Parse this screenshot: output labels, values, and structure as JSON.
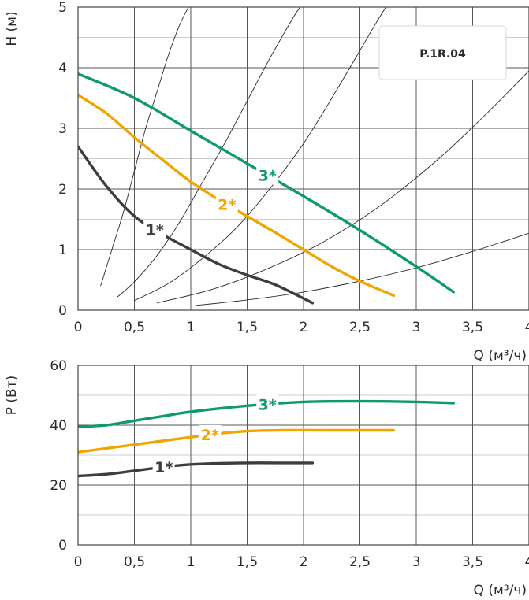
{
  "chart_data": [
    {
      "type": "line",
      "ylabel": "H (м)",
      "xlabel": "Q (м³/ч)",
      "xlim": [
        0,
        4
      ],
      "ylim": [
        0,
        5
      ],
      "x_ticks": [
        "0",
        "0,5",
        "1",
        "1,5",
        "2",
        "2,5",
        "3",
        "3,5",
        "4"
      ],
      "y_ticks": [
        "0",
        "1",
        "2",
        "3",
        "4",
        "5"
      ],
      "grid": true,
      "badge": "P.1R.04",
      "series": [
        {
          "name": "1*",
          "color": "#3d3d3d",
          "x": [
            0,
            0.25,
            0.5,
            0.75,
            1.0,
            1.25,
            1.5,
            1.75,
            2.08
          ],
          "y": [
            2.7,
            2.05,
            1.55,
            1.25,
            1.0,
            0.76,
            0.58,
            0.42,
            0.12
          ]
        },
        {
          "name": "2*",
          "color": "#f0a500",
          "x": [
            0,
            0.25,
            0.5,
            0.75,
            1.0,
            1.25,
            1.5,
            1.75,
            2.0,
            2.25,
            2.5,
            2.8
          ],
          "y": [
            3.55,
            3.25,
            2.85,
            2.48,
            2.12,
            1.82,
            1.55,
            1.28,
            1.0,
            0.72,
            0.48,
            0.24
          ]
        },
        {
          "name": "3*",
          "color": "#0f9a6e",
          "x": [
            0,
            0.5,
            1.0,
            1.5,
            2.0,
            2.5,
            3.0,
            3.33
          ],
          "y": [
            3.9,
            3.5,
            2.96,
            2.42,
            1.88,
            1.32,
            0.72,
            0.3
          ]
        }
      ],
      "system_curves": [
        {
          "x": [
            0.2,
            0.3,
            0.4,
            0.5,
            0.6,
            0.7,
            0.8,
            0.9,
            0.98
          ],
          "y": [
            0.4,
            1.0,
            1.6,
            2.3,
            3.0,
            3.6,
            4.2,
            4.7,
            5.0
          ]
        },
        {
          "x": [
            0.35,
            0.5,
            0.7,
            0.9,
            1.1,
            1.3,
            1.5,
            1.7,
            1.9,
            1.97
          ],
          "y": [
            0.22,
            0.47,
            0.9,
            1.45,
            2.1,
            2.75,
            3.45,
            4.15,
            4.8,
            5.0
          ]
        },
        {
          "x": [
            0.5,
            0.8,
            1.1,
            1.4,
            1.7,
            2.0,
            2.3,
            2.6,
            2.73
          ],
          "y": [
            0.16,
            0.44,
            0.85,
            1.35,
            2.0,
            2.75,
            3.65,
            4.6,
            5.0
          ]
        },
        {
          "x": [
            0.7,
            1.2,
            1.7,
            2.2,
            2.7,
            3.2,
            3.6,
            4.0
          ],
          "y": [
            0.12,
            0.35,
            0.7,
            1.15,
            1.75,
            2.5,
            3.2,
            3.95
          ]
        },
        {
          "x": [
            1.05,
            1.5,
            2.0,
            2.5,
            3.0,
            3.5,
            4.0
          ],
          "y": [
            0.08,
            0.17,
            0.3,
            0.48,
            0.7,
            0.97,
            1.27
          ]
        }
      ]
    },
    {
      "type": "line",
      "ylabel": "P (Вт)",
      "xlabel": "Q (м³/ч)",
      "xlim": [
        0,
        4
      ],
      "ylim": [
        0,
        60
      ],
      "x_ticks": [
        "0",
        "0,5",
        "1",
        "1,5",
        "2",
        "2,5",
        "3",
        "3,5",
        "4"
      ],
      "y_ticks": [
        "0",
        "20",
        "40",
        "60"
      ],
      "grid": true,
      "series": [
        {
          "name": "1*",
          "color": "#3d3d3d",
          "x": [
            0,
            0.3,
            0.6,
            0.9,
            1.2,
            1.5,
            1.8,
            2.08
          ],
          "y": [
            23.0,
            23.8,
            25.3,
            26.6,
            27.2,
            27.4,
            27.4,
            27.4
          ]
        },
        {
          "name": "2*",
          "color": "#f0a500",
          "x": [
            0,
            0.3,
            0.6,
            0.9,
            1.2,
            1.5,
            1.8,
            2.2,
            2.8
          ],
          "y": [
            31.0,
            32.5,
            34.0,
            35.5,
            37.0,
            38.0,
            38.3,
            38.3,
            38.3
          ]
        },
        {
          "name": "3*",
          "color": "#0f9a6e",
          "x": [
            0,
            0.25,
            0.5,
            0.75,
            1.0,
            1.5,
            2.0,
            2.5,
            3.0,
            3.33
          ],
          "y": [
            39.5,
            40.0,
            41.5,
            43.0,
            44.5,
            46.5,
            47.8,
            48.0,
            47.8,
            47.4
          ]
        }
      ]
    }
  ]
}
